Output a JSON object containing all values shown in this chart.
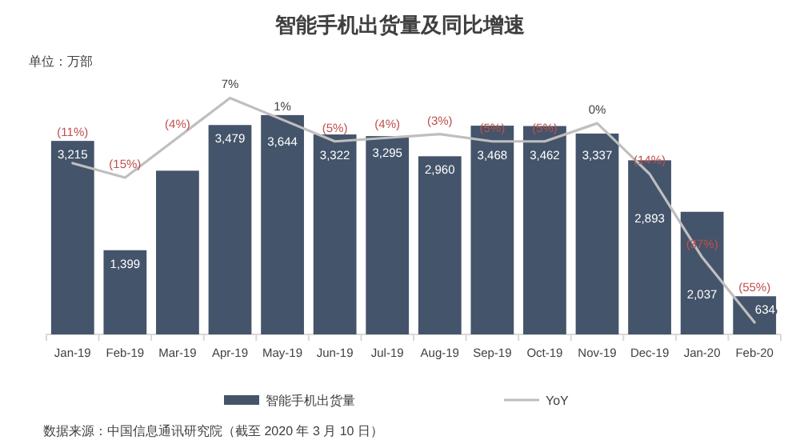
{
  "chart_data": {
    "type": "bar",
    "title": "智能手机出货量及同比增速",
    "annotations": [
      "单位：万部",
      "数据来源：中国信息通讯研究院（截至 2020 年 3 月 10 日）"
    ],
    "categories": [
      "Jan-19",
      "Feb-19",
      "Mar-19",
      "Apr-19",
      "May-19",
      "Jun-19",
      "Jul-19",
      "Aug-19",
      "Sep-19",
      "Oct-19",
      "Nov-19",
      "Dec-19",
      "Jan-20",
      "Feb-20"
    ],
    "series": [
      {
        "name": "智能手机出货量",
        "type": "bar",
        "color": "#44546a",
        "values": [
          3215,
          1399,
          2720,
          3479,
          3644,
          3322,
          3295,
          2960,
          3468,
          3462,
          3337,
          2893,
          2037,
          634
        ],
        "value_labels": [
          "3,215",
          "1,399",
          null,
          "3,479",
          "3,644",
          "3,322",
          "3,295",
          "2,960",
          "3,468",
          "3,462",
          "3,337",
          "2,893",
          "2,037",
          "634"
        ]
      },
      {
        "name": "YoY",
        "type": "line",
        "axis": "y2",
        "color": "#bfbfbf",
        "marker": "none",
        "line_style": "solid",
        "values": [
          -11,
          -15,
          -4,
          7,
          1,
          -5,
          -4,
          -3,
          -5,
          -5,
          0,
          -14,
          -37,
          -55
        ],
        "value_labels": [
          "(11%)",
          "(15%)",
          "(4%)",
          "7%",
          "1%",
          "(5%)",
          "(4%)",
          "(3%)",
          "(5%)",
          "(5%)",
          "0%",
          "(14%)",
          "(37%)",
          "(55%)"
        ]
      }
    ],
    "legend": "bottom",
    "grid": false,
    "tick_labels": "x"
  }
}
